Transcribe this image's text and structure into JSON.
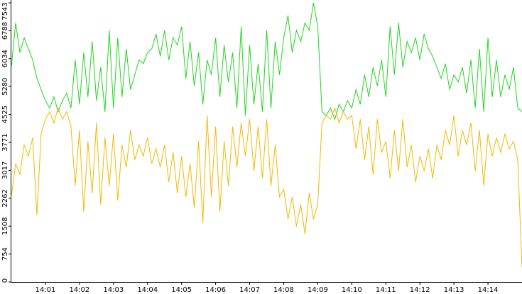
{
  "chart_data": {
    "type": "line",
    "x": [
      0,
      0.125,
      0.25,
      0.375,
      0.5,
      0.625,
      0.75,
      0.875,
      1,
      1.125,
      1.25,
      1.375,
      1.5,
      1.625,
      1.75,
      1.875,
      2,
      2.125,
      2.25,
      2.375,
      2.5,
      2.625,
      2.75,
      2.875,
      3,
      3.125,
      3.25,
      3.375,
      3.5,
      3.625,
      3.75,
      3.875,
      4,
      4.125,
      4.25,
      4.375,
      4.5,
      4.625,
      4.75,
      4.875,
      5,
      5.125,
      5.25,
      5.375,
      5.5,
      5.625,
      5.75,
      5.875,
      6,
      6.125,
      6.25,
      6.375,
      6.5,
      6.625,
      6.75,
      6.875,
      7,
      7.125,
      7.25,
      7.375,
      7.5,
      7.625,
      7.75,
      7.875,
      8,
      8.125,
      8.25,
      8.375,
      8.5,
      8.625,
      8.75,
      8.875,
      9,
      9.125,
      9.25,
      9.375,
      9.5,
      9.625,
      9.75,
      9.875,
      10,
      10.125,
      10.25,
      10.375,
      10.5,
      10.625,
      10.75,
      10.875,
      11,
      11.125,
      11.25,
      11.375,
      11.5,
      11.625,
      11.75,
      11.875,
      12,
      12.125,
      12.25,
      12.375,
      12.5,
      12.625,
      12.75,
      12.875,
      13,
      13.125,
      13.25,
      13.375,
      13.5,
      13.625,
      13.75,
      13.875,
      14,
      14.125,
      14.25,
      14.375,
      14.5,
      14.625,
      14.75,
      14.875,
      15
    ],
    "series": [
      {
        "color": "#1ed81e",
        "values": [
          5800,
          7000,
          6200,
          6600,
          6300,
          6000,
          5500,
          5200,
          4900,
          4700,
          5000,
          4600,
          4900,
          5100,
          4700,
          6000,
          4800,
          6200,
          5000,
          6500,
          4900,
          5800,
          4600,
          6800,
          4700,
          6600,
          5000,
          6300,
          5200,
          5600,
          6000,
          5900,
          6200,
          6300,
          6700,
          6100,
          6800,
          6000,
          6600,
          6400,
          6900,
          5500,
          6500,
          5300,
          6200,
          4800,
          6000,
          5600,
          6600,
          5000,
          6400,
          5400,
          6200,
          4700,
          6900,
          4500,
          6400,
          4800,
          5900,
          4600,
          6800,
          4700,
          6500,
          5600,
          6600,
          7200,
          6200,
          6800,
          6500,
          7000,
          6800,
          7543,
          6900,
          4600,
          4500,
          4700,
          4400,
          4800,
          4600,
          4900,
          4700,
          5200,
          4800,
          5600,
          5000,
          5800,
          5300,
          6000,
          5000,
          6900,
          5600,
          7000,
          5800,
          6500,
          6200,
          6600,
          6000,
          6700,
          6300,
          6100,
          5800,
          5500,
          5900,
          5200,
          5600,
          5400,
          5800,
          5100,
          6000,
          4700,
          6300,
          4600,
          6600,
          5000,
          6000,
          5000,
          5600,
          5200,
          5800,
          4700,
          4600
        ]
      },
      {
        "color": "#f5b800",
        "values": [
          2300,
          3200,
          2900,
          3700,
          3400,
          3900,
          1800,
          4000,
          4400,
          4600,
          4300,
          4700,
          4400,
          4600,
          4200,
          2600,
          4100,
          1900,
          3800,
          2400,
          4300,
          2100,
          3900,
          2600,
          4000,
          2200,
          3700,
          3100,
          4100,
          3300,
          3700,
          3400,
          3900,
          3200,
          3600,
          3100,
          3700,
          2700,
          3500,
          2400,
          3400,
          2300,
          3200,
          2000,
          3800,
          1600,
          4500,
          2300,
          4200,
          1900,
          3800,
          2600,
          4200,
          3100,
          4300,
          3400,
          4400,
          3000,
          4200,
          2800,
          4400,
          2600,
          3700,
          2300,
          2500,
          1700,
          2300,
          1500,
          2100,
          1300,
          2400,
          1700,
          2100,
          4300,
          4500,
          4400,
          4700,
          4300,
          4600,
          4400,
          4500,
          3600,
          4400,
          3300,
          4200,
          2900,
          4400,
          3500,
          3800,
          2800,
          4100,
          3000,
          4400,
          3100,
          3700,
          2700,
          3400,
          3000,
          3600,
          2800,
          3700,
          3300,
          4100,
          3700,
          4500,
          3400,
          4100,
          3700,
          4300,
          3000,
          4100,
          2600,
          4000,
          3400,
          3900,
          3500,
          4000,
          3600,
          3800,
          3300,
          400
        ]
      }
    ],
    "xlim": [
      0,
      15
    ],
    "xticks": [
      {
        "value": 1,
        "label": "14:01"
      },
      {
        "value": 2,
        "label": "14:02"
      },
      {
        "value": 3,
        "label": "14:03"
      },
      {
        "value": 4,
        "label": "14:04"
      },
      {
        "value": 5,
        "label": "14:05"
      },
      {
        "value": 6,
        "label": "14:06"
      },
      {
        "value": 7,
        "label": "14:07"
      },
      {
        "value": 8,
        "label": "14:08"
      },
      {
        "value": 9,
        "label": "14:09"
      },
      {
        "value": 10,
        "label": "14:10"
      },
      {
        "value": 11,
        "label": "14:11"
      },
      {
        "value": 12,
        "label": "14:12"
      },
      {
        "value": 13,
        "label": "14:13"
      },
      {
        "value": 14,
        "label": "14:14"
      }
    ],
    "ylim": [
      0,
      7543
    ],
    "yticks": [
      0,
      754,
      1508,
      2262,
      3017,
      3771,
      4525,
      5280,
      6034,
      6788,
      7543
    ]
  }
}
